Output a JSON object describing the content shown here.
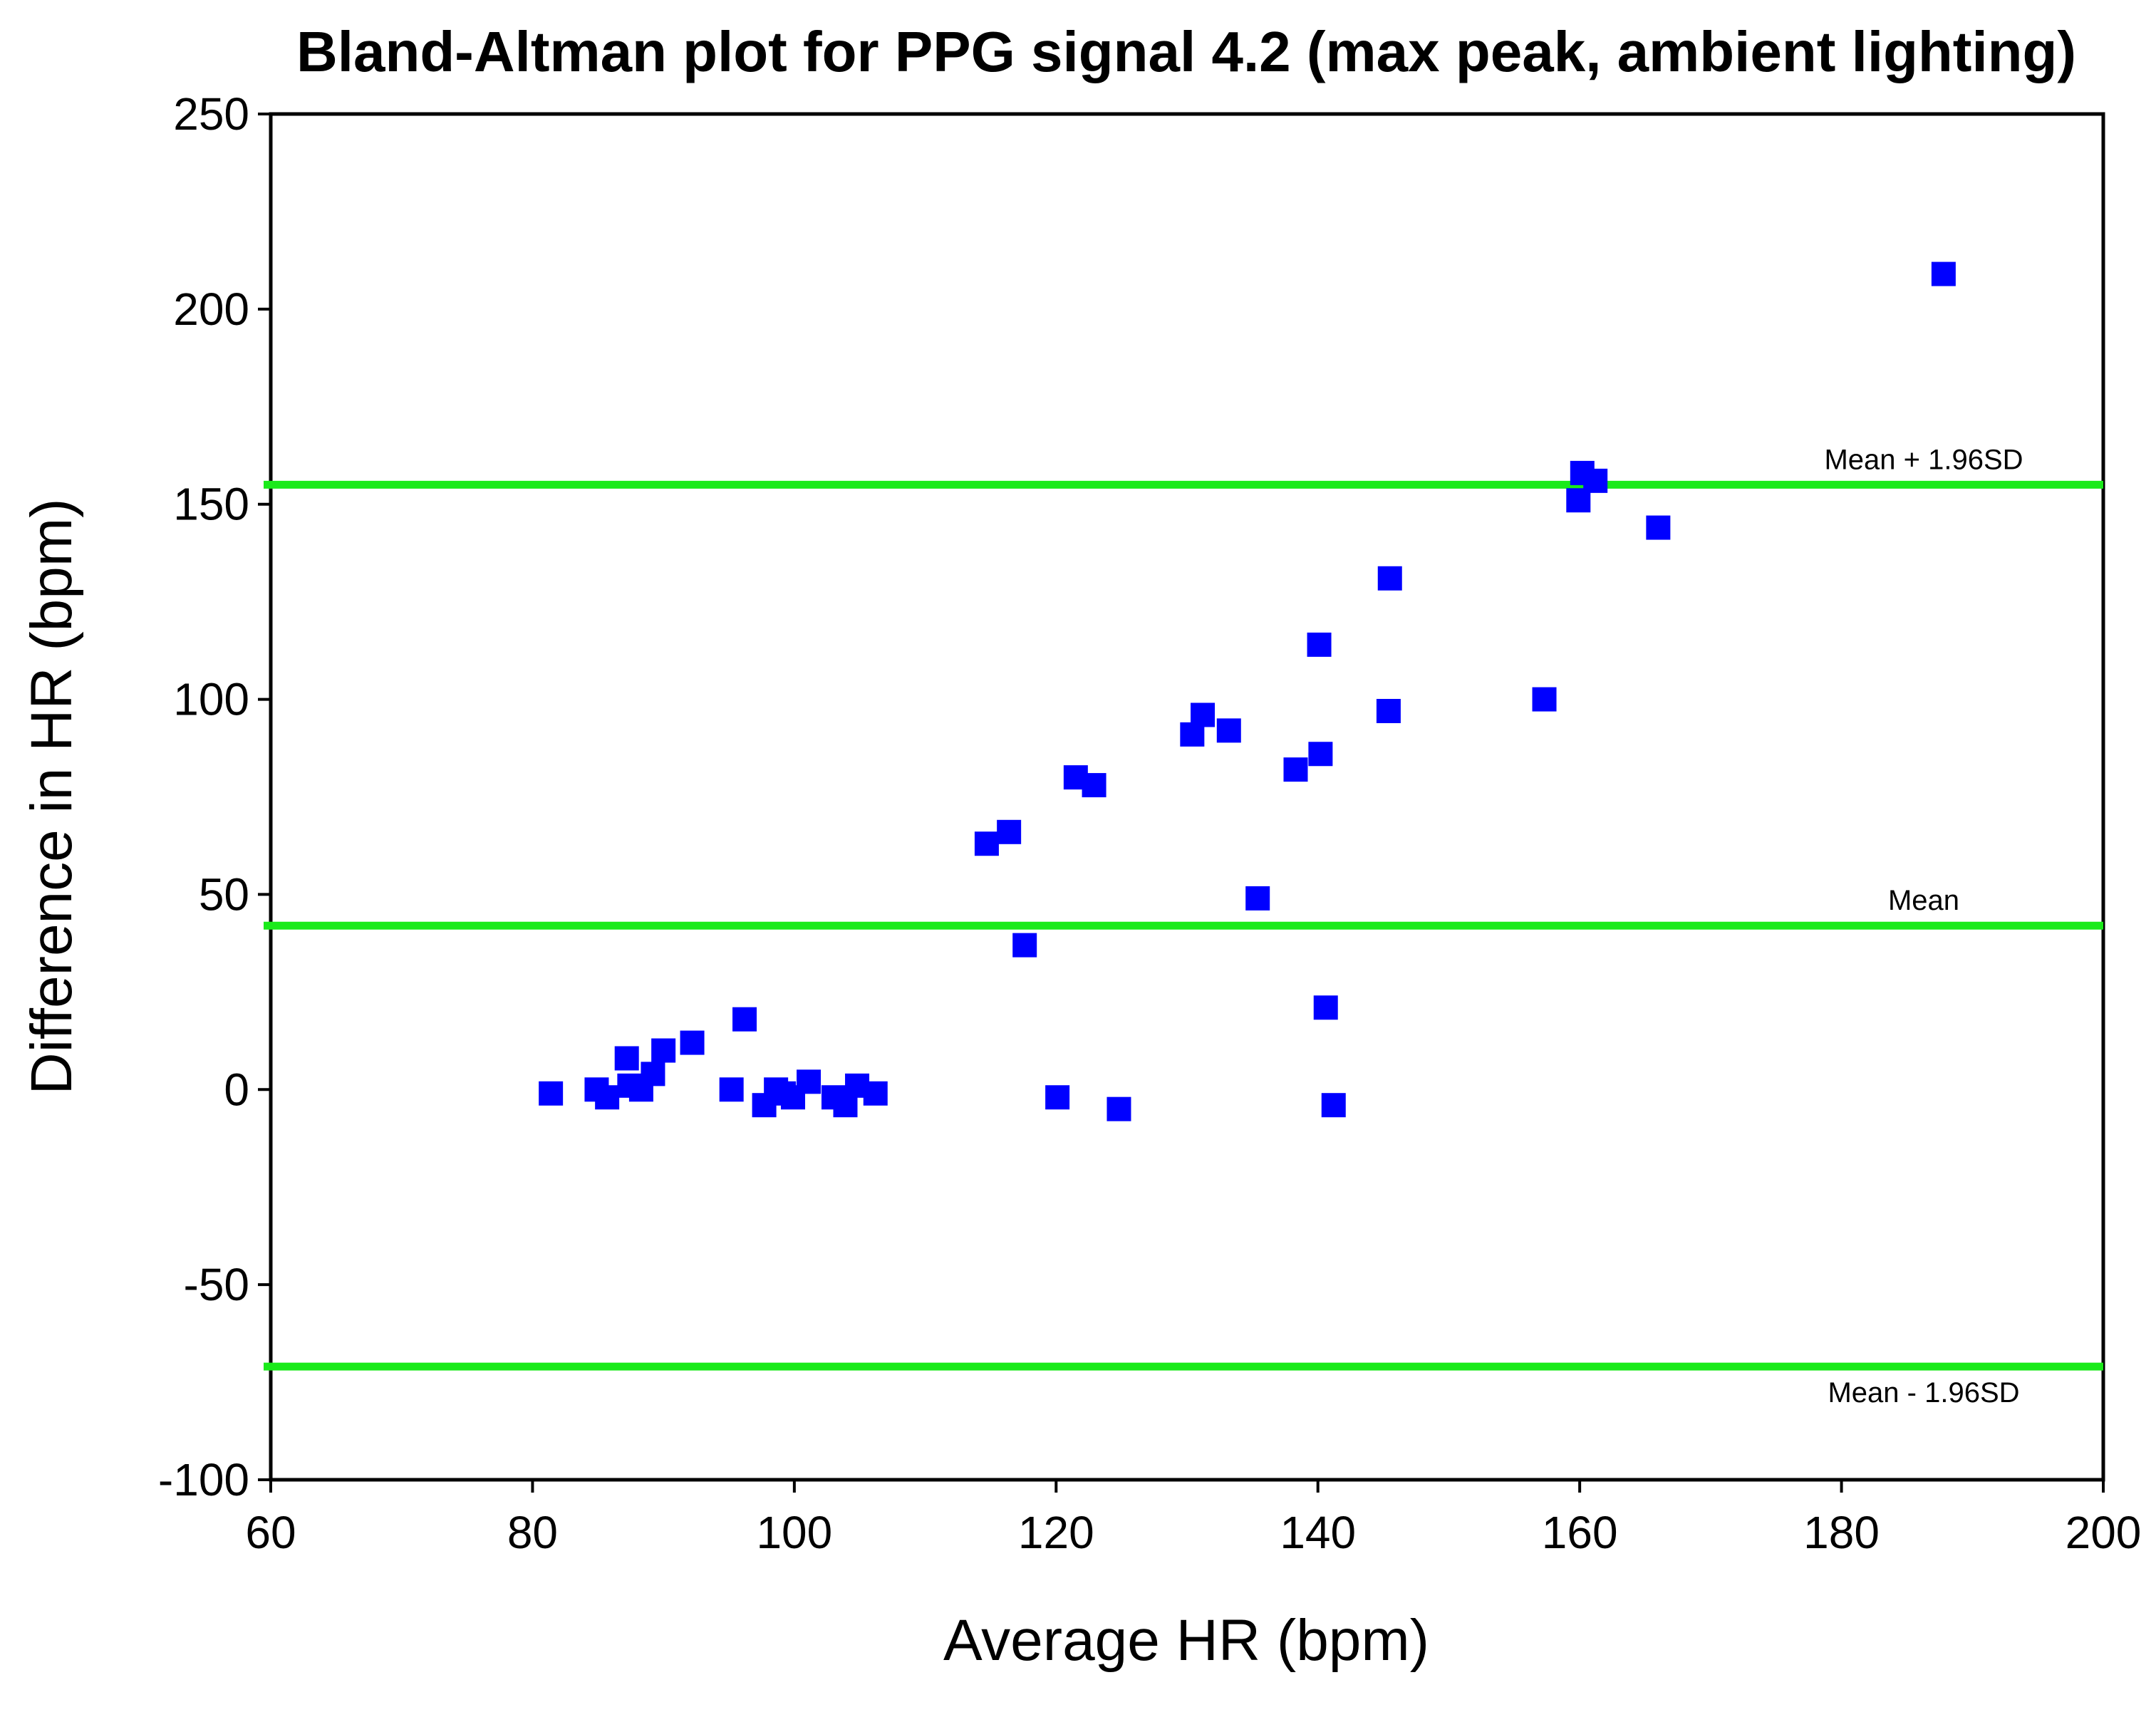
{
  "chart_data": {
    "type": "scatter",
    "title": "Bland-Altman plot for PPG signal 4.2 (max peak, ambient lighting)",
    "xlabel": "Average HR (bpm)",
    "ylabel": "Difference in HR (bpm)",
    "xlim": [
      60,
      200
    ],
    "ylim": [
      -100,
      250
    ],
    "xticks": [
      60,
      80,
      100,
      120,
      140,
      160,
      180,
      200
    ],
    "yticks": [
      -100,
      -50,
      0,
      50,
      100,
      150,
      200,
      250
    ],
    "grid": false,
    "marker_color": "#0000ff",
    "line_color": "#1aea1a",
    "reference_lines": [
      {
        "name": "upper-limit",
        "label": "Mean + 1.96SD",
        "y": 155
      },
      {
        "name": "mean",
        "label": "Mean",
        "y": 42
      },
      {
        "name": "lower-limit",
        "label": "Mean - 1.96SD",
        "y": -71
      }
    ],
    "series": [
      {
        "name": "PPG signal 4.2",
        "points": [
          {
            "x": 81.4,
            "y": -1
          },
          {
            "x": 84.9,
            "y": 0
          },
          {
            "x": 85.7,
            "y": -2
          },
          {
            "x": 87.2,
            "y": 8
          },
          {
            "x": 87.4,
            "y": 1
          },
          {
            "x": 88.3,
            "y": 0
          },
          {
            "x": 89.2,
            "y": 4
          },
          {
            "x": 90.0,
            "y": 10
          },
          {
            "x": 92.2,
            "y": 12
          },
          {
            "x": 95.2,
            "y": 0
          },
          {
            "x": 96.2,
            "y": 18
          },
          {
            "x": 97.7,
            "y": -4
          },
          {
            "x": 98.6,
            "y": 0
          },
          {
            "x": 99.2,
            "y": -1
          },
          {
            "x": 99.9,
            "y": -2
          },
          {
            "x": 101.1,
            "y": 2
          },
          {
            "x": 103.0,
            "y": -2
          },
          {
            "x": 103.9,
            "y": -4
          },
          {
            "x": 104.8,
            "y": 1
          },
          {
            "x": 106.2,
            "y": -1
          },
          {
            "x": 114.7,
            "y": 63
          },
          {
            "x": 116.4,
            "y": 66
          },
          {
            "x": 117.6,
            "y": 37
          },
          {
            "x": 120.1,
            "y": -2
          },
          {
            "x": 121.5,
            "y": 80
          },
          {
            "x": 122.9,
            "y": 78
          },
          {
            "x": 124.8,
            "y": -5
          },
          {
            "x": 130.4,
            "y": 91
          },
          {
            "x": 131.2,
            "y": 96
          },
          {
            "x": 133.2,
            "y": 92
          },
          {
            "x": 135.4,
            "y": 49
          },
          {
            "x": 138.3,
            "y": 82
          },
          {
            "x": 140.1,
            "y": 114
          },
          {
            "x": 140.2,
            "y": 86
          },
          {
            "x": 140.6,
            "y": 21
          },
          {
            "x": 141.2,
            "y": -4
          },
          {
            "x": 145.5,
            "y": 131
          },
          {
            "x": 145.4,
            "y": 97
          },
          {
            "x": 157.3,
            "y": 100
          },
          {
            "x": 159.9,
            "y": 151
          },
          {
            "x": 160.2,
            "y": 158
          },
          {
            "x": 161.2,
            "y": 156
          },
          {
            "x": 166.0,
            "y": 144
          },
          {
            "x": 187.8,
            "y": 209
          }
        ]
      }
    ]
  }
}
